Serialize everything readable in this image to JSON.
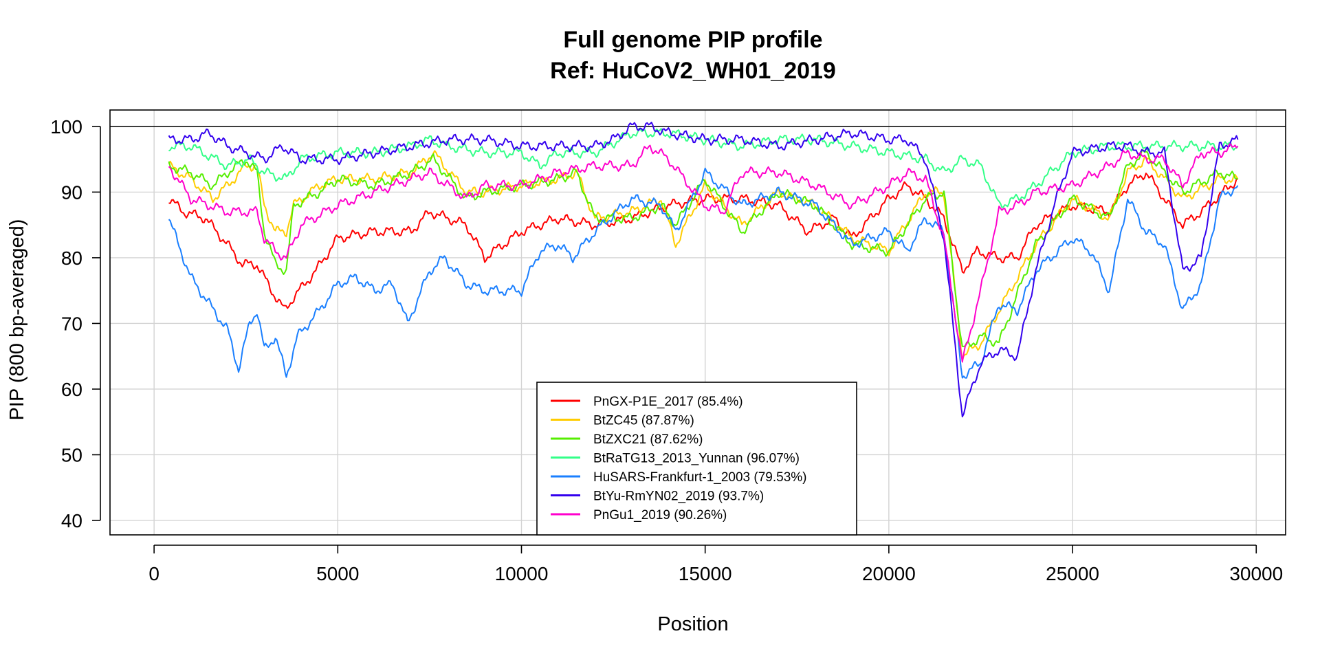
{
  "chart_data": {
    "type": "line",
    "title": "Full genome PIP profile",
    "subtitle": "Ref: HuCoV2_WH01_2019",
    "xlabel": "Position",
    "ylabel": "PIP (800 bp-averaged)",
    "xlim": [
      -1200,
      30800
    ],
    "ylim": [
      37.8,
      102.5
    ],
    "xticks": [
      0,
      5000,
      10000,
      15000,
      20000,
      25000,
      30000
    ],
    "yticks": [
      40,
      50,
      60,
      70,
      80,
      90,
      100
    ],
    "grid": true,
    "reference_line": 100,
    "legend_position": "bottom-center",
    "series": [
      {
        "name": "PnGX-P1E_2017 (85.4%)",
        "color": "#ff0000",
        "x": [
          400,
          800,
          1400,
          2000,
          2400,
          2800,
          3200,
          3550,
          3800,
          4400,
          5000,
          6000,
          7000,
          7500,
          8500,
          9000,
          10000,
          11000,
          12000,
          13000,
          14000,
          15000,
          16000,
          17000,
          17800,
          18500,
          19000,
          20000,
          20500,
          21000,
          21500,
          22000,
          22400,
          23000,
          23500,
          24000,
          25000,
          26000,
          26500,
          27000,
          28000,
          28500,
          29500
        ],
        "y": [
          89,
          87,
          86,
          82,
          79,
          79,
          75,
          72,
          74,
          78,
          83,
          84,
          84,
          87,
          85,
          80,
          84,
          86,
          85,
          86,
          88,
          89,
          89,
          88,
          84,
          86,
          83,
          89,
          91,
          89,
          86,
          78,
          81,
          80,
          80,
          85,
          88,
          87,
          91,
          93,
          85,
          87,
          92
        ]
      },
      {
        "name": "BtZC45 (87.87%)",
        "color": "#ffcc00",
        "x": [
          400,
          1000,
          1600,
          2000,
          2500,
          2800,
          3000,
          3300,
          3600,
          3800,
          4500,
          5000,
          6000,
          7000,
          7600,
          8500,
          9000,
          10000,
          11000,
          11500,
          12000,
          13000,
          13800,
          14200,
          15000,
          16000,
          17000,
          18000,
          19000,
          20000,
          21000,
          21500,
          22000,
          22500,
          23000,
          24000,
          25000,
          26000,
          26500,
          27000,
          28000,
          29000,
          29500
        ],
        "y": [
          94,
          92,
          89,
          91,
          94,
          94,
          88,
          84,
          84,
          88,
          91,
          92,
          92,
          93,
          96,
          90,
          90,
          91,
          92,
          93,
          86,
          87,
          89,
          82,
          91,
          85,
          90,
          88,
          83,
          81,
          90,
          90,
          65,
          67,
          72,
          82,
          89,
          86,
          93,
          95,
          89,
          92,
          92
        ]
      },
      {
        "name": "BtZXC21 (87.62%)",
        "color": "#55ee00",
        "x": [
          400,
          1000,
          1600,
          2000,
          2500,
          2800,
          3000,
          3300,
          3600,
          3800,
          4500,
          5000,
          6000,
          7000,
          7600,
          8500,
          9000,
          10000,
          11000,
          11500,
          12000,
          13000,
          13800,
          14200,
          15000,
          16000,
          17000,
          18000,
          19000,
          20000,
          21000,
          21500,
          22000,
          22500,
          23000,
          24000,
          25000,
          26000,
          26500,
          27000,
          28000,
          29000,
          29500
        ],
        "y": [
          94,
          93,
          91,
          93,
          95,
          93,
          84,
          79,
          78,
          88,
          90,
          92,
          91,
          93,
          95,
          89,
          90,
          91,
          92,
          93,
          86,
          86,
          88,
          85,
          92,
          84,
          90,
          88,
          82,
          81,
          89,
          90,
          66,
          68,
          67,
          82,
          89,
          86,
          94,
          96,
          90,
          93,
          92
        ]
      },
      {
        "name": "BtRaTG13_2013_Yunnan (96.07%)",
        "color": "#33ff88",
        "x": [
          400,
          1000,
          2000,
          2600,
          3000,
          3600,
          4000,
          5000,
          6000,
          7000,
          7500,
          8000,
          9000,
          10000,
          10500,
          11000,
          12000,
          13000,
          14000,
          15000,
          16000,
          17000,
          18000,
          19000,
          20000,
          21000,
          21500,
          22000,
          22500,
          23000,
          23500,
          24000,
          25000,
          26000,
          27000,
          28000,
          29000,
          29500
        ],
        "y": [
          97,
          97,
          94,
          95,
          93,
          92,
          95,
          96,
          96,
          97,
          98,
          97,
          96,
          96,
          94,
          96,
          96,
          99,
          99,
          98,
          97,
          98,
          98,
          97,
          96,
          95,
          93,
          95,
          94,
          88,
          89,
          91,
          96,
          97,
          97,
          97,
          97,
          97
        ]
      },
      {
        "name": "HuSARS-Frankfurt-1_2003 (79.53%)",
        "color": "#1a7fff",
        "x": [
          400,
          1000,
          1500,
          2000,
          2300,
          2600,
          2800,
          3000,
          3300,
          3600,
          3900,
          4500,
          5000,
          5500,
          6000,
          6500,
          6900,
          7500,
          7900,
          8500,
          9000,
          10000,
          10500,
          11000,
          11400,
          12000,
          13000,
          13800,
          14200,
          15000,
          16000,
          17000,
          18000,
          19000,
          20000,
          20500,
          21000,
          21500,
          22000,
          22500,
          23000,
          23500,
          24000,
          25000,
          25500,
          26000,
          26500,
          27000,
          27500,
          28000,
          28500,
          29000,
          29500
        ],
        "y": [
          86,
          77,
          73,
          69,
          63,
          70,
          72,
          66,
          68,
          62,
          68,
          72,
          76,
          77,
          75,
          76,
          70,
          78,
          80,
          76,
          75,
          75,
          81,
          82,
          80,
          84,
          89,
          88,
          84,
          93,
          88,
          90,
          88,
          82,
          84,
          81,
          86,
          84,
          62,
          64,
          73,
          72,
          78,
          83,
          81,
          75,
          89,
          84,
          82,
          72,
          76,
          89,
          91
        ]
      },
      {
        "name": "BtYu-RmYN02_2019 (93.7%)",
        "color": "#3300ee",
        "x": [
          400,
          1000,
          1500,
          2000,
          2500,
          3000,
          3500,
          4000,
          5000,
          6000,
          7000,
          8000,
          9000,
          10000,
          11000,
          12000,
          12500,
          13000,
          13500,
          14000,
          15000,
          16000,
          17000,
          18000,
          19000,
          20000,
          20500,
          21000,
          21500,
          22000,
          22500,
          23000,
          23500,
          24000,
          24500,
          25000,
          26000,
          26500,
          27000,
          27500,
          28000,
          28500,
          29000,
          29500
        ],
        "y": [
          98,
          98,
          99,
          97,
          96,
          95,
          97,
          95,
          95,
          96,
          97,
          98,
          98,
          97,
          97,
          97,
          98,
          100,
          100,
          99,
          98,
          98,
          97,
          98,
          99,
          98,
          98,
          95,
          83,
          56,
          64,
          66,
          65,
          78,
          88,
          96,
          97,
          97,
          96,
          96,
          78,
          80,
          97,
          98
        ]
      },
      {
        "name": "PnGu1_2019 (90.26%)",
        "color": "#ff00cc",
        "x": [
          400,
          1000,
          1500,
          2000,
          2500,
          2800,
          3000,
          3300,
          3600,
          4000,
          5000,
          6000,
          7000,
          7500,
          8500,
          9000,
          10000,
          11000,
          12000,
          13000,
          13500,
          14000,
          15000,
          15500,
          16000,
          17000,
          18000,
          19000,
          20000,
          20500,
          21000,
          21500,
          22000,
          22500,
          23000,
          23500,
          24000,
          25000,
          26000,
          26500,
          27000,
          27500,
          28000,
          28500,
          29000,
          29500
        ],
        "y": [
          94,
          89,
          88,
          87,
          87,
          87,
          83,
          81,
          80,
          85,
          88,
          90,
          92,
          93,
          89,
          91,
          91,
          93,
          94,
          94,
          97,
          95,
          88,
          87,
          93,
          93,
          91,
          88,
          91,
          93,
          92,
          83,
          64,
          75,
          87,
          88,
          90,
          91,
          94,
          96,
          95,
          95,
          91,
          96,
          96,
          97
        ]
      }
    ]
  }
}
